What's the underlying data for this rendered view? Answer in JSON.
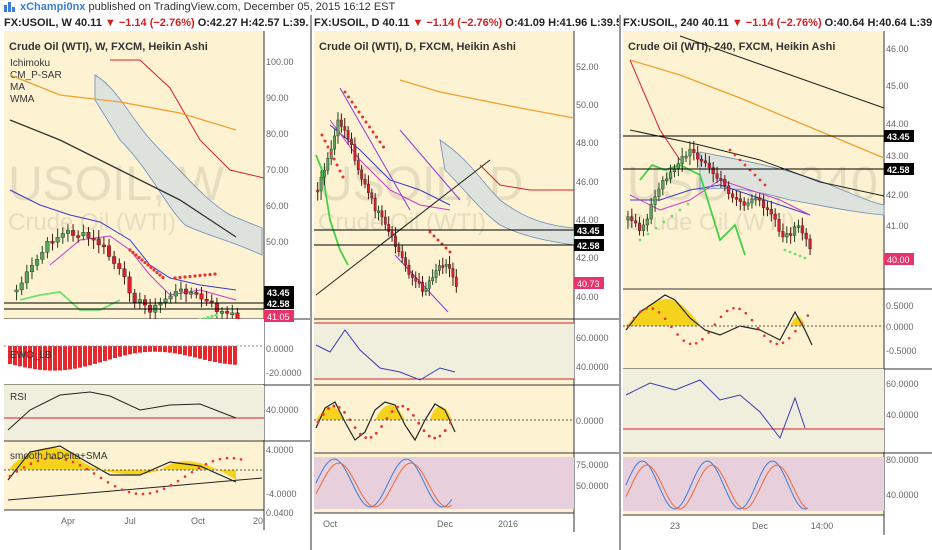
{
  "header": {
    "user": "xChampi0nx",
    "text": " published on TradingView.com, December 05, 2015 16:12 EST"
  },
  "panels": [
    {
      "id": "w",
      "sym": "FX:USOIL, W ",
      "last": "40.11",
      "chg": "▼ −1.14 (−2.76%)",
      "ohlc": " O:42.27 H:42.57 L:39.59 C",
      "title": "Crude Oil (WTI), W, FXCM, Heikin Ashi",
      "wm1": "USOIL, W",
      "wm2": "Crude Oil (WTI)",
      "indicators": [
        "Ichimoku",
        "CM_P-SAR",
        "MA",
        "WMA"
      ],
      "axis_labels": [
        "100.00",
        "90.00",
        "80.00",
        "70.00",
        "60.00",
        "50.00"
      ],
      "levels": [
        "43.45",
        "42.58"
      ],
      "price_tag": "41.05",
      "ewo_label": "EWO_LB",
      "ewo_ticks": [
        "0.0000",
        "-20.0000"
      ],
      "rsi_label": "RSI",
      "rsi_ticks": [
        "40.0000"
      ],
      "haDelta_label": "smooth haDelta+SMA",
      "haDelta_ticks": [
        "4.0000",
        "-4.0000",
        "0.0400"
      ],
      "x_labels": [
        "Apr",
        "Jul",
        "Oct",
        "20"
      ]
    },
    {
      "id": "d",
      "sym": "FX:USOIL, D ",
      "last": "40.11",
      "chg": "▼ −1.14 (−2.76%)",
      "ohlc": " O:41.09 H:41.96 L:39.59 C",
      "title": "Crude Oil (WTI), D, FXCM, Heikin Ashi",
      "wm1": "USOIL, D",
      "wm2": "Crude Oil (WTI)",
      "axis_labels": [
        "52.00",
        "50.00",
        "48.00",
        "46.00",
        "44.00",
        "42.00",
        "40.00"
      ],
      "levels": [
        "43.45",
        "42.58"
      ],
      "price_tag": "40.73",
      "rsi_ticks": [
        "60.0000",
        "40.0000"
      ],
      "haDelta_ticks": [
        "0.0000"
      ],
      "stoch_ticks": [
        "75.0000",
        "50.0000"
      ],
      "x_labels": [
        "Oct",
        "Dec",
        "2016"
      ]
    },
    {
      "id": "h",
      "sym": "FX:USOIL, 240 ",
      "last": "40.11",
      "chg": "▼ −1.14 (−2.76%)",
      "ohlc": " O:40.64 H:40.64 L:39.71",
      "title": "Crude Oil (WTI), 240, FXCM, Heikin Ashi",
      "wm1": "USOIL, 240",
      "wm2": "Crude Oil (WTI)",
      "axis_labels": [
        "46.00",
        "45.00",
        "44.00",
        "43.00",
        "42.00",
        "41.00"
      ],
      "levels": [
        "43.45",
        "42.58"
      ],
      "price_tag": "40.00",
      "haDelta_ticks": [
        "0.5000",
        "0.0000",
        "-0.5000"
      ],
      "rsi_ticks": [
        "60.0000",
        "40.0000"
      ],
      "stoch_ticks": [
        "80.0000",
        "40.0000"
      ],
      "x_labels": [
        "23",
        "Dec",
        "14:00"
      ]
    }
  ],
  "colors": {
    "panel_bg": "#fdf3d2",
    "cloud": "#dde3dc",
    "candle_up": "#5aa55a",
    "candle_down": "#d8202c",
    "sar": "#e8332f",
    "sar_up": "#6ee06e",
    "ma": "#f0a030",
    "wma": "#333333",
    "ichimoku_base": "#3b3bc8",
    "ichimoku_conv": "#c83bc8",
    "level_tag": "#000000",
    "price_tag": "#e8336a",
    "rsi_line": "#3a3ab0",
    "rsi_bg": "#f0eedc",
    "stoch_bg": "#e8cfdc",
    "hadelta_fill": "#f5d21c",
    "ewo_bar": "#e4282c"
  }
}
